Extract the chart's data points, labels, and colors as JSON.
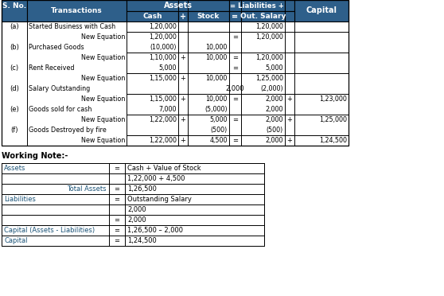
{
  "header_bg": "#2e5f8a",
  "header_text": "#ffffff",
  "fig_bg": "#ffffff",
  "border_color": "#000000",
  "wn_label_color": "#1a5276",
  "main_rows": [
    [
      "(a)",
      "Started Business with Cash",
      "1,20,000",
      "",
      "",
      "",
      "1,20,000"
    ],
    [
      "",
      "New Equation",
      "1,20,000",
      "",
      "",
      "=",
      "1,20,000"
    ],
    [
      "(b)",
      "Purchased Goods",
      "(10,000)",
      "",
      "10,000",
      "",
      ""
    ],
    [
      "",
      "New Equation",
      "1,10,000",
      "+",
      "10,000",
      "=",
      "1,20,000"
    ],
    [
      "(c)",
      "Rent Received",
      "5,000",
      "",
      "",
      "=",
      "5,000"
    ],
    [
      "",
      "New Equation",
      "1,15,000",
      "+",
      "10,000",
      "",
      "1,25,000"
    ],
    [
      "(d)",
      "Salary Outstanding",
      "",
      "",
      "",
      "2,000",
      "(2,000)"
    ],
    [
      "",
      "New Equation",
      "1,15,000",
      "+",
      "10,000",
      "=",
      "2,000",
      "+",
      "1,23,000"
    ],
    [
      "(e)",
      "Goods sold for cash",
      "7,000",
      "",
      "(5,000)",
      "",
      "2,000"
    ],
    [
      "",
      "New Equation",
      "1,22,000",
      "+",
      "5,000",
      "=",
      "2,000",
      "+",
      "1,25,000"
    ],
    [
      "(f)",
      "Goods Destroyed by fire",
      "",
      "",
      "(500)",
      "",
      "(500)"
    ],
    [
      "",
      "New Equation",
      "1,22,000",
      "+",
      "4,500",
      "=",
      "2,000",
      "+",
      "1,24,500"
    ]
  ],
  "wn_rows": [
    [
      "Assets",
      "=",
      "Cash + Value of Stock"
    ],
    [
      "",
      "",
      "1,22,000 + 4,500"
    ],
    [
      "Total Assets",
      "=",
      "1,26,500"
    ],
    [
      "Liabilities",
      "=",
      "Outstanding Salary"
    ],
    [
      "",
      "",
      "2,000"
    ],
    [
      "",
      "=",
      "2,000"
    ],
    [
      "Capital (Assets - Liabilities)",
      "=",
      "1,26,500 – 2,000"
    ],
    [
      "Capital",
      "=",
      "1,24,500"
    ]
  ],
  "new_eq_rows": [
    1,
    3,
    5,
    7,
    9,
    11
  ],
  "wn_colored_rows": [
    0,
    2,
    3,
    6,
    7
  ]
}
